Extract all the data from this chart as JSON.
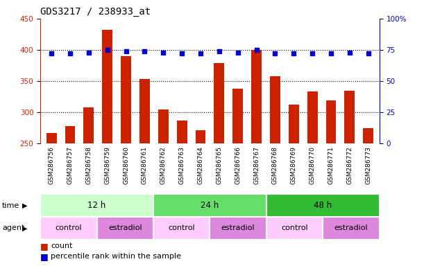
{
  "title": "GDS3217 / 238933_at",
  "samples": [
    "GSM286756",
    "GSM286757",
    "GSM286758",
    "GSM286759",
    "GSM286760",
    "GSM286761",
    "GSM286762",
    "GSM286763",
    "GSM286764",
    "GSM286765",
    "GSM286766",
    "GSM286767",
    "GSM286768",
    "GSM286769",
    "GSM286770",
    "GSM286771",
    "GSM286772",
    "GSM286773"
  ],
  "counts": [
    267,
    278,
    308,
    432,
    390,
    354,
    305,
    287,
    272,
    379,
    338,
    400,
    358,
    312,
    334,
    319,
    335,
    275
  ],
  "percentiles": [
    72,
    72,
    73,
    75,
    74,
    74,
    73,
    72,
    72,
    74,
    73,
    75,
    72,
    72,
    72,
    72,
    73,
    72
  ],
  "ylim_left": [
    250,
    450
  ],
  "ylim_right": [
    0,
    100
  ],
  "yticks_left": [
    250,
    300,
    350,
    400,
    450
  ],
  "yticks_right": [
    0,
    25,
    50,
    75,
    100
  ],
  "bar_color": "#cc2200",
  "dot_color": "#0000cc",
  "time_groups": [
    {
      "label": "12 h",
      "start": 0,
      "end": 6,
      "color": "#ccffcc"
    },
    {
      "label": "24 h",
      "start": 6,
      "end": 12,
      "color": "#66dd66"
    },
    {
      "label": "48 h",
      "start": 12,
      "end": 18,
      "color": "#33bb33"
    }
  ],
  "agent_groups": [
    {
      "label": "control",
      "start": 0,
      "end": 3,
      "color": "#ffccff"
    },
    {
      "label": "estradiol",
      "start": 3,
      "end": 6,
      "color": "#dd88dd"
    },
    {
      "label": "control",
      "start": 6,
      "end": 9,
      "color": "#ffccff"
    },
    {
      "label": "estradiol",
      "start": 9,
      "end": 12,
      "color": "#dd88dd"
    },
    {
      "label": "control",
      "start": 12,
      "end": 15,
      "color": "#ffccff"
    },
    {
      "label": "estradiol",
      "start": 15,
      "end": 18,
      "color": "#dd88dd"
    }
  ],
  "bg_color": "#ffffff",
  "label_row_color": "#bbbbbb"
}
